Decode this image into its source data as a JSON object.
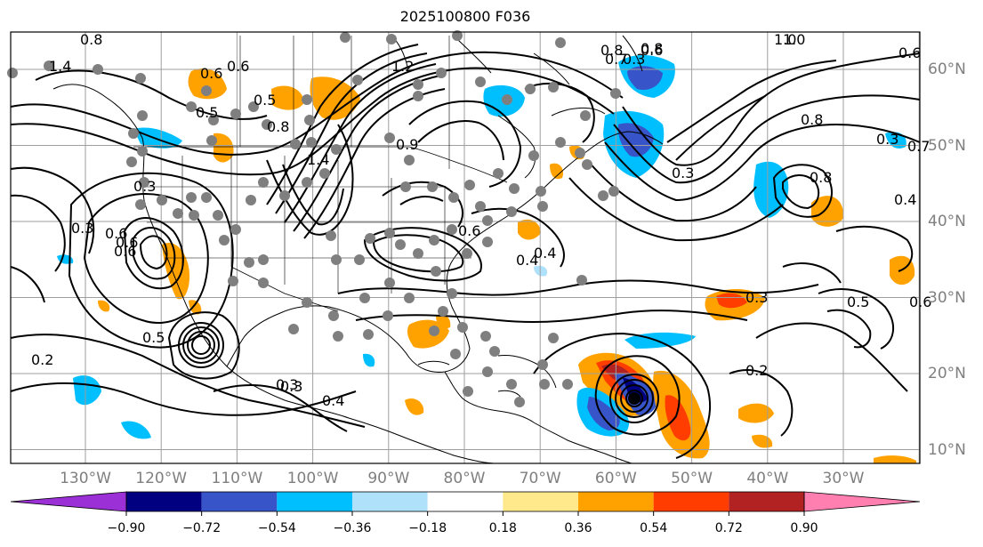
{
  "title": "2025100800 F036",
  "lon_labels": [
    "130°W",
    "120°W",
    "110°W",
    "100°W",
    "90°W",
    "80°W",
    "70°W",
    "60°W",
    "50°W",
    "40°W",
    "30°W"
  ],
  "lat_labels": [
    "60°N",
    "50°N",
    "40°N",
    "30°N",
    "20°N",
    "10°N"
  ],
  "colorbar": {
    "levels": [
      "−0.90",
      "−0.72",
      "−0.54",
      "−0.36",
      "−0.18",
      "0.18",
      "0.36",
      "0.54",
      "0.72",
      "0.90"
    ],
    "colors": [
      "#9b30d6",
      "#000080",
      "#3755c8",
      "#00bfff",
      "#afe1fb",
      "#ffffff",
      "#ffe98a",
      "#ffa200",
      "#ff3d00",
      "#b22222",
      "#ff80b0"
    ]
  },
  "contour_labels": [
    "0.8",
    "1.4",
    "0.5",
    "0.6",
    "0.7",
    "0.8",
    "1.2",
    "1.0",
    "0.8",
    "0.6",
    "1.0",
    "0.6",
    "0.3",
    "0.8",
    "0.5",
    "0.3",
    "1.4",
    "0.3",
    "0.6",
    "0.4",
    "0.9",
    "0.8",
    "0.4",
    "0.3",
    "0.6",
    "0.5",
    "0.2",
    "0.3",
    "0.6",
    "0.4",
    "0.3",
    "0.5",
    "0.6",
    "0.3",
    "0.6",
    "0.8",
    "0.2",
    "0.3",
    "0.4",
    "0.7",
    "0.6"
  ],
  "palette": {
    "contour": "#000000",
    "coast": "#000000",
    "grid": "#9e9e9e",
    "station": "#7f7f7f",
    "label": "#7f7f7f"
  }
}
